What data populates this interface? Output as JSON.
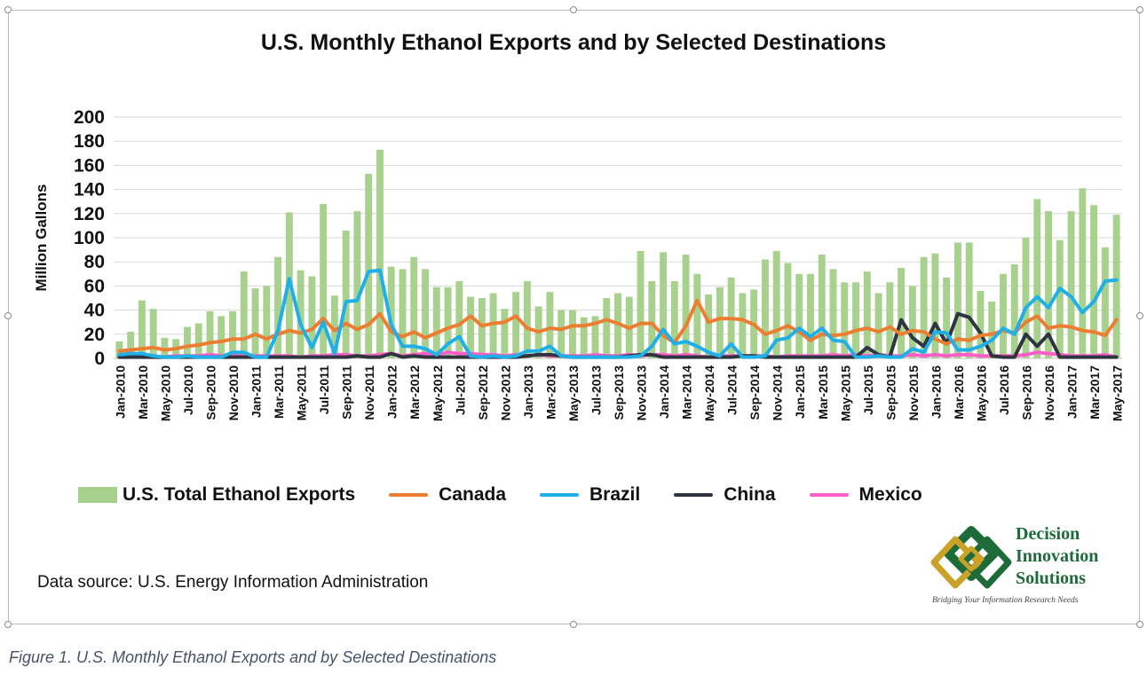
{
  "caption": "Figure 1. U.S. Monthly Ethanol Exports and by Selected Destinations",
  "source_note": "Data source: U.S. Energy Information Administration",
  "logo": {
    "line1": "Decision",
    "line2": "Innovation",
    "line3": "Solutions",
    "tagline": "Bridging Your Information Research Needs",
    "colors": {
      "green": "#1e6b3a",
      "gold": "#c9a227"
    }
  },
  "colors": {
    "total": "#a9d18e",
    "canada": "#ed7d31",
    "brazil": "#1fb0e8",
    "china": "#2e3440",
    "mexico": "#ff5ec8",
    "grid": "#d9d9d9"
  },
  "chart_data": {
    "type": "bar",
    "title": "U.S. Monthly Ethanol Exports and by Selected Destinations",
    "xlabel": "",
    "ylabel": "Million Gallons",
    "ylim": [
      0,
      200
    ],
    "yticks": [
      0,
      20,
      40,
      60,
      80,
      100,
      120,
      140,
      160,
      180,
      200
    ],
    "grid": true,
    "legend_position": "bottom",
    "categories": [
      "Jan-2010",
      "Feb-2010",
      "Mar-2010",
      "Apr-2010",
      "May-2010",
      "Jun-2010",
      "Jul-2010",
      "Aug-2010",
      "Sep-2010",
      "Oct-2010",
      "Nov-2010",
      "Dec-2010",
      "Jan-2011",
      "Feb-2011",
      "Mar-2011",
      "Apr-2011",
      "May-2011",
      "Jun-2011",
      "Jul-2011",
      "Aug-2011",
      "Sep-2011",
      "Oct-2011",
      "Nov-2011",
      "Dec-2011",
      "Jan-2012",
      "Feb-2012",
      "Mar-2012",
      "Apr-2012",
      "May-2012",
      "Jun-2012",
      "Jul-2012",
      "Aug-2012",
      "Sep-2012",
      "Oct-2012",
      "Nov-2012",
      "Dec-2012",
      "Jan-2013",
      "Feb-2013",
      "Mar-2013",
      "Apr-2013",
      "May-2013",
      "Jun-2013",
      "Jul-2013",
      "Aug-2013",
      "Sep-2013",
      "Oct-2013",
      "Nov-2013",
      "Dec-2013",
      "Jan-2014",
      "Feb-2014",
      "Mar-2014",
      "Apr-2014",
      "May-2014",
      "Jun-2014",
      "Jul-2014",
      "Aug-2014",
      "Sep-2014",
      "Oct-2014",
      "Nov-2014",
      "Dec-2014",
      "Jan-2015",
      "Feb-2015",
      "Mar-2015",
      "Apr-2015",
      "May-2015",
      "Jun-2015",
      "Jul-2015",
      "Aug-2015",
      "Sep-2015",
      "Oct-2015",
      "Nov-2015",
      "Dec-2015",
      "Jan-2016",
      "Feb-2016",
      "Mar-2016",
      "Apr-2016",
      "May-2016",
      "Jun-2016",
      "Jul-2016",
      "Aug-2016",
      "Sep-2016",
      "Oct-2016",
      "Nov-2016",
      "Dec-2016",
      "Jan-2017",
      "Feb-2017",
      "Mar-2017",
      "Apr-2017",
      "May-2017"
    ],
    "tick_labels": [
      "Jan-2010",
      "Mar-2010",
      "May-2010",
      "Jul-2010",
      "Sep-2010",
      "Nov-2010",
      "Jan-2011",
      "Mar-2011",
      "May-2011",
      "Jul-2011",
      "Sep-2011",
      "Nov-2011",
      "Jan-2012",
      "Mar-2012",
      "May-2012",
      "Jul-2012",
      "Sep-2012",
      "Nov-2012",
      "Jan-2013",
      "Mar-2013",
      "May-2013",
      "Jul-2013",
      "Sep-2013",
      "Nov-2013",
      "Jan-2014",
      "Mar-2014",
      "May-2014",
      "Jul-2014",
      "Sep-2014",
      "Nov-2014",
      "Jan-2015",
      "Mar-2015",
      "May-2015",
      "Jul-2015",
      "Sep-2015",
      "Nov-2015",
      "Jan-2016",
      "Mar-2016",
      "May-2016",
      "Jul-2016",
      "Sep-2016",
      "Nov-2016",
      "Jan-2017",
      "Mar-2017",
      "May-2017"
    ],
    "series": [
      {
        "name": "U.S. Total Ethanol Exports",
        "kind": "bar",
        "values": [
          14,
          22,
          48,
          41,
          17,
          16,
          26,
          29,
          39,
          35,
          39,
          72,
          58,
          60,
          84,
          121,
          73,
          68,
          128,
          52,
          106,
          122,
          153,
          173,
          76,
          74,
          84,
          74,
          59,
          59,
          64,
          51,
          50,
          54,
          41,
          55,
          64,
          43,
          55,
          40,
          40,
          34,
          35,
          50,
          54,
          51,
          89,
          64,
          88,
          64,
          86,
          70,
          53,
          59,
          67,
          54,
          57,
          82,
          89,
          79,
          70,
          70,
          86,
          74,
          63,
          63,
          72,
          54,
          63,
          75,
          60,
          84,
          87,
          67,
          96,
          96,
          56,
          47,
          70,
          78,
          100,
          132,
          122,
          98,
          122,
          141,
          127,
          92,
          119
        ]
      },
      {
        "name": "Canada",
        "kind": "line",
        "values": [
          6,
          7,
          8,
          9,
          7,
          8,
          10,
          11,
          13,
          14,
          16,
          16,
          20,
          16,
          20,
          23,
          21,
          24,
          33,
          23,
          29,
          24,
          28,
          37,
          22,
          18,
          22,
          17,
          21,
          25,
          28,
          35,
          27,
          29,
          30,
          35,
          25,
          22,
          25,
          24,
          27,
          27,
          29,
          32,
          29,
          25,
          29,
          29,
          19,
          13,
          27,
          48,
          30,
          33,
          33,
          32,
          28,
          20,
          23,
          27,
          22,
          15,
          20,
          19,
          20,
          23,
          25,
          22,
          26,
          20,
          23,
          22,
          16,
          12,
          16,
          15,
          19,
          20,
          23,
          21,
          30,
          35,
          25,
          27,
          26,
          23,
          22,
          19,
          32
        ]
      },
      {
        "name": "Brazil",
        "kind": "line",
        "values": [
          3,
          4,
          4,
          2,
          1,
          1,
          2,
          1,
          1,
          1,
          5,
          5,
          1,
          1,
          23,
          66,
          28,
          9,
          30,
          4,
          47,
          48,
          72,
          73,
          28,
          10,
          10,
          8,
          3,
          12,
          18,
          2,
          1,
          2,
          1,
          2,
          6,
          6,
          10,
          2,
          1,
          1,
          1,
          1,
          1,
          1,
          2,
          10,
          24,
          12,
          14,
          10,
          5,
          2,
          12,
          1,
          1,
          2,
          15,
          17,
          25,
          18,
          25,
          15,
          14,
          1,
          1,
          2,
          1,
          1,
          8,
          5,
          22,
          21,
          7,
          7,
          10,
          15,
          25,
          20,
          42,
          51,
          42,
          58,
          51,
          38,
          47,
          64,
          65
        ]
      },
      {
        "name": "China",
        "kind": "line",
        "values": [
          1,
          1,
          1,
          1,
          1,
          1,
          1,
          1,
          1,
          1,
          1,
          1,
          1,
          1,
          1,
          1,
          1,
          1,
          1,
          1,
          1,
          2,
          1,
          1,
          4,
          1,
          2,
          1,
          1,
          1,
          1,
          1,
          1,
          1,
          1,
          1,
          2,
          3,
          3,
          2,
          1,
          1,
          1,
          1,
          1,
          2,
          3,
          3,
          1,
          1,
          1,
          1,
          1,
          1,
          1,
          2,
          2,
          1,
          1,
          1,
          1,
          1,
          1,
          1,
          1,
          1,
          9,
          3,
          1,
          32,
          17,
          10,
          29,
          12,
          37,
          34,
          21,
          2,
          1,
          1,
          20,
          10,
          20,
          1,
          1,
          1,
          1,
          1,
          1
        ]
      },
      {
        "name": "Mexico",
        "kind": "line",
        "values": [
          2,
          2,
          2,
          1,
          1,
          2,
          2,
          2,
          3,
          2,
          2,
          2,
          2,
          2,
          2,
          2,
          1,
          2,
          2,
          3,
          3,
          2,
          2,
          3,
          4,
          2,
          3,
          4,
          3,
          5,
          4,
          4,
          3,
          3,
          2,
          3,
          2,
          3,
          2,
          2,
          2,
          2,
          3,
          2,
          2,
          3,
          2,
          3,
          3,
          2,
          3,
          2,
          1,
          2,
          2,
          2,
          2,
          2,
          1,
          2,
          2,
          2,
          2,
          3,
          2,
          3,
          2,
          3,
          2,
          2,
          3,
          2,
          3,
          2,
          3,
          3,
          2,
          2,
          2,
          2,
          3,
          5,
          4,
          3,
          2,
          2,
          2,
          3,
          1
        ]
      }
    ]
  }
}
